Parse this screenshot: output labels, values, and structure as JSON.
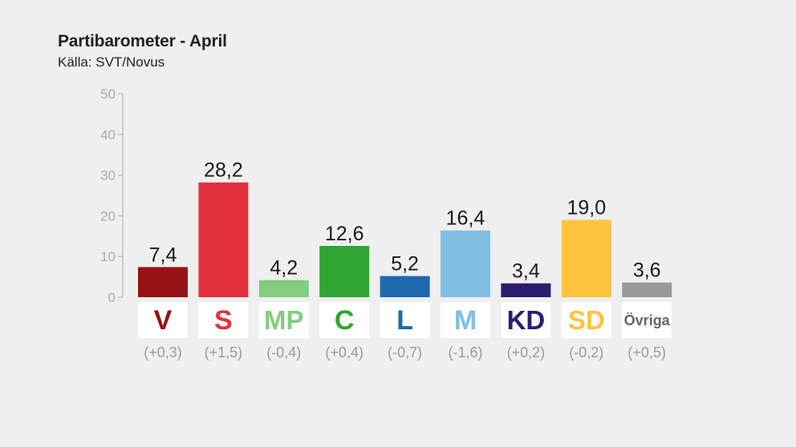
{
  "header": {
    "title": "Partibarometer - April",
    "subtitle": "Källa: SVT/Novus"
  },
  "chart_data": {
    "type": "bar",
    "categories": [
      "V",
      "S",
      "MP",
      "C",
      "L",
      "M",
      "KD",
      "SD",
      "Övriga"
    ],
    "values": [
      7.4,
      28.2,
      4.2,
      12.6,
      5.2,
      16.4,
      3.4,
      19.0,
      3.6
    ],
    "value_labels": [
      "7,4",
      "28,2",
      "4,2",
      "12,6",
      "5,2",
      "16,4",
      "3,4",
      "19,0",
      "3,6"
    ],
    "changes": [
      "(+0,3)",
      "(+1,5)",
      "(-0,4)",
      "(+0,4)",
      "(-0,7)",
      "(-1,6)",
      "(+0,2)",
      "(-0,2)",
      "(+0,5)"
    ],
    "colors": [
      "#951315",
      "#e2323e",
      "#84cc7f",
      "#31a532",
      "#1e69aa",
      "#80bfe3",
      "#2d1b6d",
      "#fdc440",
      "#999999"
    ],
    "ylim": [
      0,
      50
    ],
    "yticks": [
      "0",
      "10",
      "20",
      "30",
      "40",
      "50"
    ],
    "grid": false,
    "legend": "none",
    "title": "Partibarometer - April",
    "subtitle": "Källa: SVT/Novus"
  }
}
